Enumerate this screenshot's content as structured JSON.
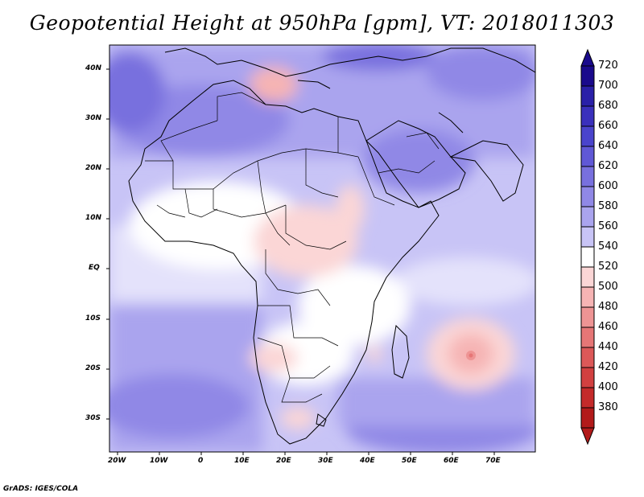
{
  "title": "Geopotential Height at 950hPa [gpm], VT: 2018011303",
  "credit": "GrADS: IGES/COLA",
  "map": {
    "lat_labels": [
      "40N",
      "30N",
      "20N",
      "10N",
      "EQ",
      "10S",
      "20S",
      "30S"
    ],
    "lon_labels": [
      "20W",
      "10W",
      "0",
      "10E",
      "20E",
      "30E",
      "40E",
      "50E",
      "60E",
      "70E"
    ]
  },
  "colorbar": {
    "levels": [
      "720",
      "700",
      "680",
      "660",
      "640",
      "620",
      "600",
      "580",
      "560",
      "540",
      "520",
      "500",
      "480",
      "460",
      "440",
      "420",
      "400",
      "380"
    ],
    "colors": [
      "#1a0a8c",
      "#2a20a8",
      "#3a30bc",
      "#4a44cc",
      "#6058d6",
      "#7870de",
      "#9088e6",
      "#aaa4ee",
      "#c8c4f6",
      "#ffffff",
      "#fbd6d6",
      "#f6b4b4",
      "#ee9494",
      "#e67676",
      "#dc5858",
      "#d24040",
      "#c42a2a",
      "#b21a1a"
    ]
  }
}
